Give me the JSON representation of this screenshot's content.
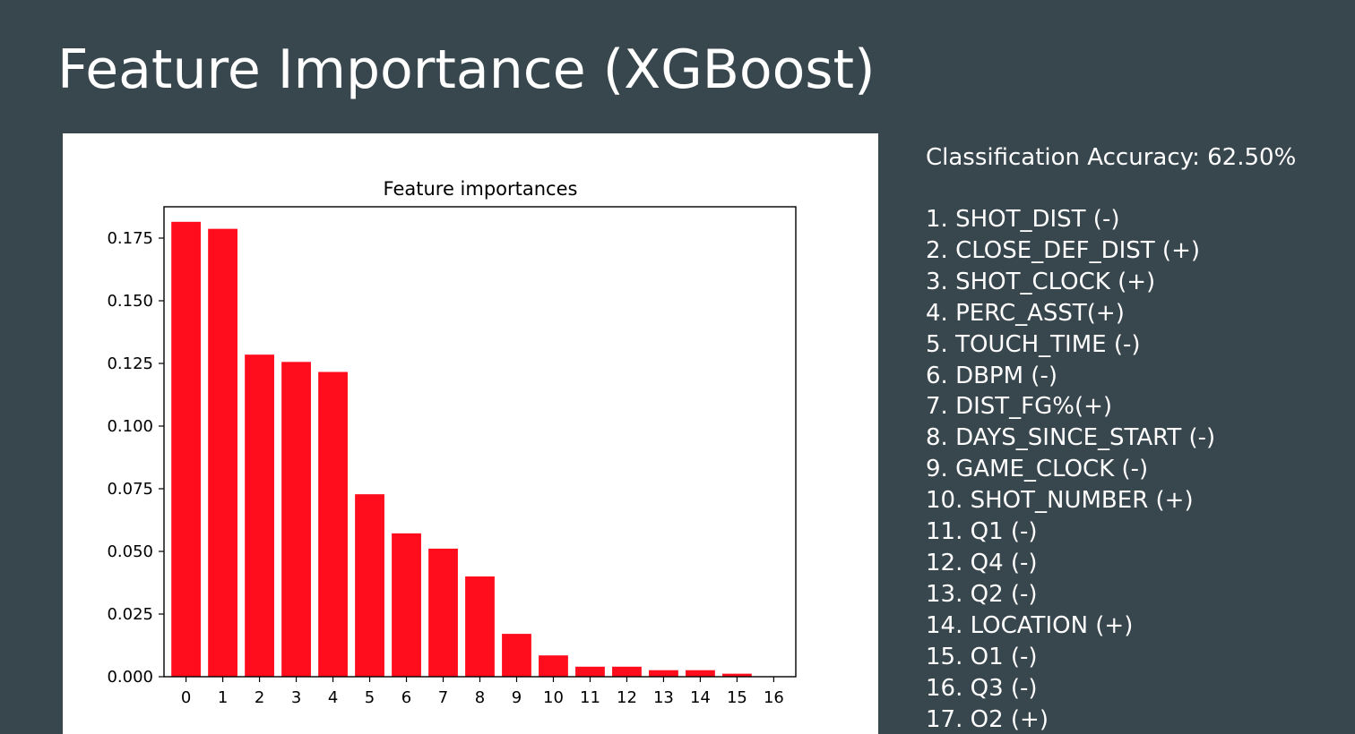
{
  "slide": {
    "title": "Feature Importance (XGBoost)"
  },
  "side_panel": {
    "accuracy": "Classification Accuracy: 62.50%",
    "features": [
      "1. SHOT_DIST (-)",
      "2. CLOSE_DEF_DIST (+)",
      "3. SHOT_CLOCK (+)",
      "4. PERC_ASST(+)",
      "5. TOUCH_TIME (-)",
      "6. DBPM (-)",
      "7. DIST_FG%(+)",
      "8. DAYS_SINCE_START (-)",
      "9. GAME_CLOCK (-)",
      "10. SHOT_NUMBER (+)",
      "11. Q1 (-)",
      "12. Q4 (-)",
      "13. Q2 (-)",
      "14. LOCATION (+)",
      "15. O1 (-)",
      "16. Q3 (-)",
      "17. O2 (+)"
    ]
  },
  "chart_data": {
    "type": "bar",
    "title": "Feature importances",
    "xlabel": "",
    "ylabel": "",
    "categories": [
      "0",
      "1",
      "2",
      "3",
      "4",
      "5",
      "6",
      "7",
      "8",
      "9",
      "10",
      "11",
      "12",
      "13",
      "14",
      "15",
      "16"
    ],
    "values": [
      0.1815,
      0.1787,
      0.1285,
      0.1256,
      0.1216,
      0.0728,
      0.0572,
      0.0511,
      0.04,
      0.0171,
      0.0085,
      0.004,
      0.004,
      0.0026,
      0.0026,
      0.0012,
      0.0
    ],
    "ylim": [
      0,
      0.1875
    ],
    "yticks": [
      0.0,
      0.025,
      0.05,
      0.075,
      0.1,
      0.125,
      0.15,
      0.175
    ],
    "ytick_labels": [
      "0.000",
      "0.025",
      "0.050",
      "0.075",
      "0.100",
      "0.125",
      "0.150",
      "0.175"
    ],
    "bar_color": "#ff0d1d",
    "grid": false,
    "legend": "none"
  }
}
